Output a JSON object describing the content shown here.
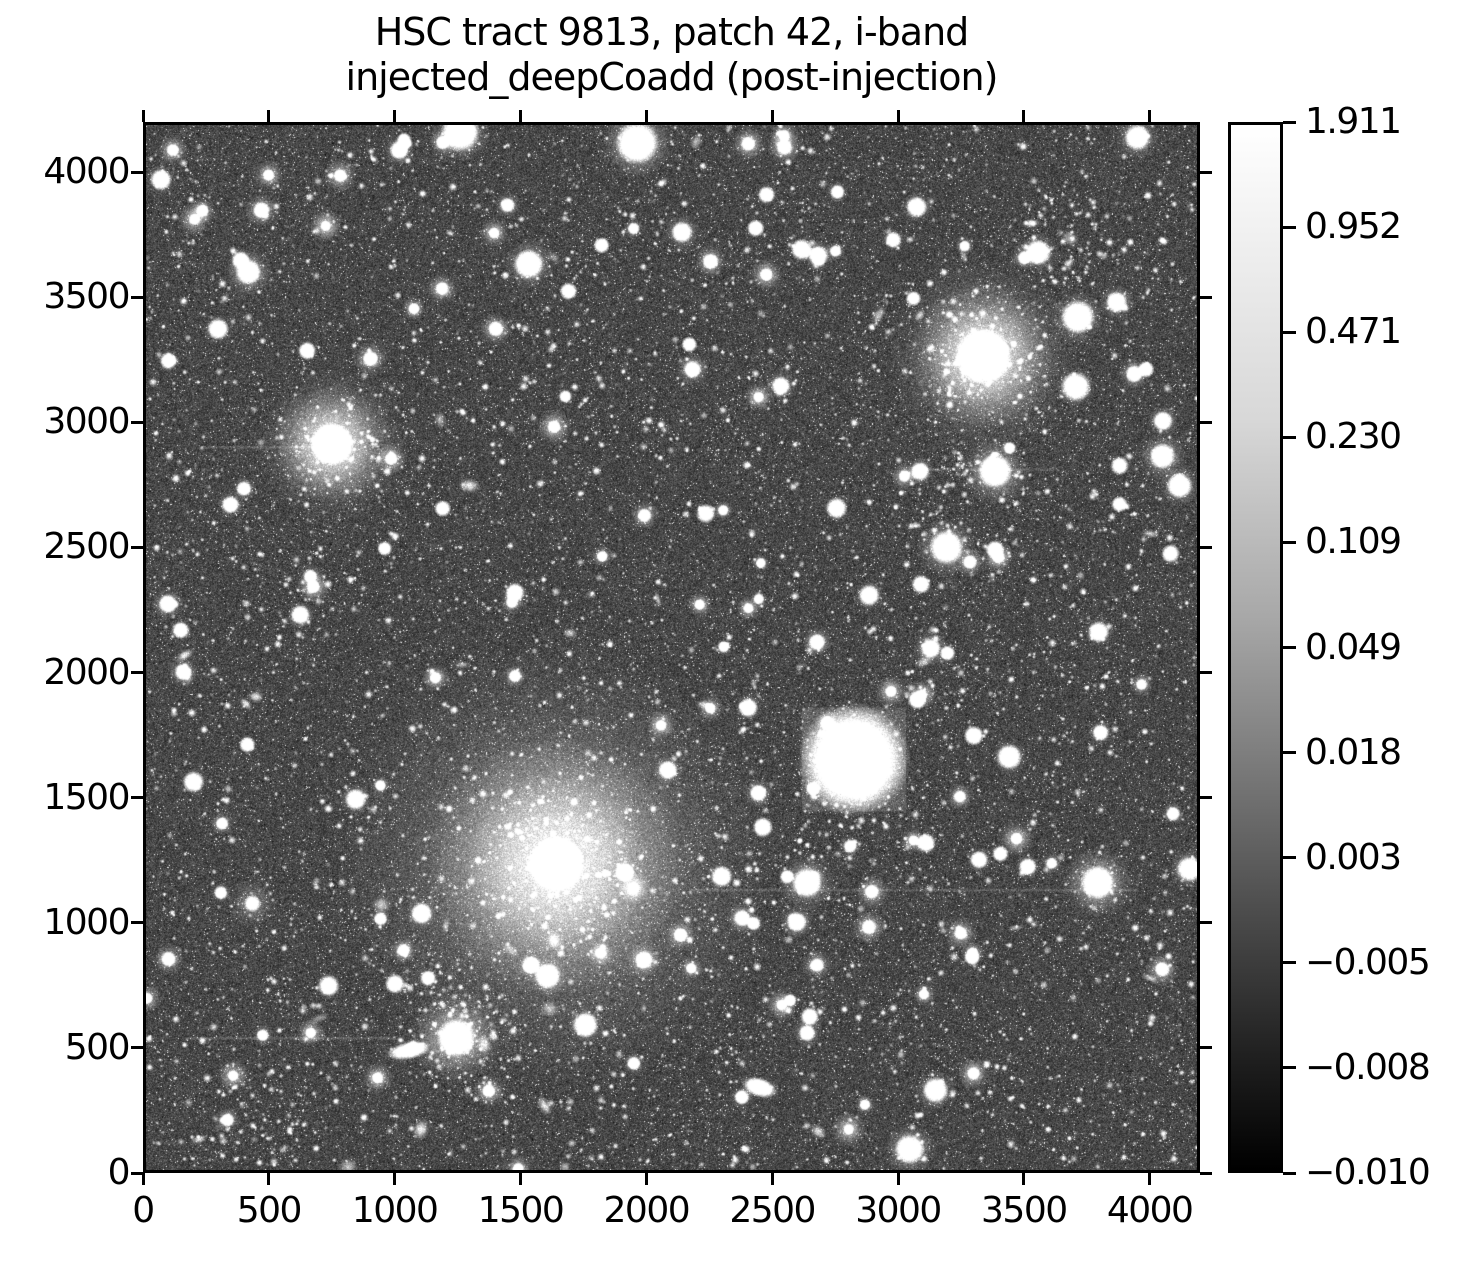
{
  "figure": {
    "title_line1": "HSC tract 9813, patch 42, i-band",
    "title_line2": "injected_deepCoadd (post-injection)",
    "background_color": "#ffffff",
    "text_color": "#000000"
  },
  "chart_data": {
    "type": "heatmap",
    "title": "HSC tract 9813, patch 42, i-band\ninjected_deepCoadd (post-injection)",
    "xlabel": "",
    "ylabel": "",
    "xlim": [
      0,
      4200
    ],
    "ylim": [
      0,
      4200
    ],
    "x_ticks": [
      0,
      500,
      1000,
      1500,
      2000,
      2500,
      3000,
      3500,
      4000
    ],
    "y_ticks": [
      0,
      500,
      1000,
      1500,
      2000,
      2500,
      3000,
      3500,
      4000
    ],
    "grid": false,
    "legend": false,
    "colormap": "grayscale (black=low, white=high)",
    "stretch": "asinh-like nonlinear (tick values unevenly valued, evenly spaced on bar)",
    "colorbar": {
      "position": "right",
      "value_min": -0.01,
      "value_max": 1.911,
      "tick_labels": [
        "1.911",
        "0.952",
        "0.471",
        "0.230",
        "0.109",
        "0.049",
        "0.018",
        "0.003",
        "−0.005",
        "−0.008",
        "−0.010"
      ],
      "tick_values": [
        1.911,
        0.952,
        0.471,
        0.23,
        0.109,
        0.049,
        0.018,
        0.003,
        -0.005,
        -0.008,
        -0.01
      ],
      "gradient_stops": [
        {
          "pos": 0.0,
          "color": "#ffffff"
        },
        {
          "pos": 0.28,
          "color": "#d8d8d8"
        },
        {
          "pos": 0.47,
          "color": "#a8a8a8"
        },
        {
          "pos": 0.62,
          "color": "#787878"
        },
        {
          "pos": 0.76,
          "color": "#4a4a4a"
        },
        {
          "pos": 0.9,
          "color": "#1d1d1d"
        },
        {
          "pos": 1.0,
          "color": "#000000"
        }
      ]
    },
    "image_content": "deep grayscale sky coadd: dense noisy background with thousands of point sources, several saturated stars and diffuse galaxy halos",
    "bright_sources": [
      {
        "x": 1640,
        "y": 1230,
        "core": 13,
        "halo": 130,
        "alpha": 0.95,
        "glow": 1.7,
        "note": "giant central galaxy with huge diffuse halo"
      },
      {
        "x": 3346,
        "y": 3270,
        "core": 13,
        "halo": 75,
        "alpha": 0.9,
        "glow": 1.3
      },
      {
        "x": 743,
        "y": 2917,
        "core": 10,
        "halo": 60,
        "alpha": 0.85,
        "glow": 1.3
      },
      {
        "x": 2829,
        "y": 1650,
        "core": 26,
        "halo": 48,
        "alpha": 0.9,
        "stamp": 52,
        "note": "injected fuzzy source with square stamp edge"
      },
      {
        "x": 3393,
        "y": 2809,
        "core": 8,
        "halo": 34,
        "alpha": 0.85
      },
      {
        "x": 3199,
        "y": 2502,
        "core": 8,
        "halo": 30,
        "alpha": 0.85
      },
      {
        "x": 1963,
        "y": 4128,
        "core": 10,
        "halo": 36,
        "alpha": 0.9
      },
      {
        "x": 1256,
        "y": 4170,
        "core": 9,
        "halo": 30,
        "alpha": 0.9
      },
      {
        "x": 1240,
        "y": 531,
        "core": 9,
        "halo": 46,
        "alpha": 0.9
      },
      {
        "x": 3803,
        "y": 1155,
        "core": 8,
        "halo": 36,
        "alpha": 0.85
      },
      {
        "x": 2642,
        "y": 1155,
        "core": 7,
        "halo": 28,
        "alpha": 0.8
      },
      {
        "x": 3052,
        "y": 84,
        "core": 7,
        "halo": 26,
        "alpha": 0.8
      },
      {
        "x": 1530,
        "y": 3641,
        "core": 7,
        "halo": 25,
        "alpha": 0.8
      },
      {
        "x": 409,
        "y": 3609,
        "core": 6,
        "halo": 24,
        "alpha": 0.8
      },
      {
        "x": 3724,
        "y": 3428,
        "core": 8,
        "halo": 26,
        "alpha": 0.85
      },
      {
        "x": 3716,
        "y": 3148,
        "core": 7,
        "halo": 20,
        "alpha": 0.8
      },
      {
        "x": 3962,
        "y": 4150,
        "core": 6,
        "halo": 22,
        "alpha": 0.8
      },
      {
        "x": 2142,
        "y": 3769,
        "core": 5,
        "halo": 18,
        "alpha": 0.75
      },
      {
        "x": 4062,
        "y": 2869,
        "core": 6,
        "halo": 24,
        "alpha": 0.8
      },
      {
        "x": 3565,
        "y": 3688,
        "core": 6,
        "halo": 20,
        "alpha": 0.8
      },
      {
        "x": 3879,
        "y": 3488,
        "core": 5,
        "halo": 18,
        "alpha": 0.75
      },
      {
        "x": 1605,
        "y": 779,
        "core": 6,
        "halo": 20,
        "alpha": 0.8
      },
      {
        "x": 1756,
        "y": 583,
        "core": 6,
        "halo": 18,
        "alpha": 0.8
      },
      {
        "x": 1101,
        "y": 1031,
        "core": 5,
        "halo": 16,
        "alpha": 0.75
      },
      {
        "x": 838,
        "y": 1490,
        "core": 5,
        "halo": 16,
        "alpha": 0.75
      },
      {
        "x": 3155,
        "y": 320,
        "core": 6,
        "halo": 20,
        "alpha": 0.8
      },
      {
        "x": 2452,
        "y": 332,
        "core": 8,
        "halo": 22,
        "alpha": 0.7,
        "ell": 0.55,
        "rot": 0.3,
        "note": "elongated bright galaxy"
      },
      {
        "x": 425,
        "y": 1071,
        "core": 4,
        "halo": 26,
        "alpha": 0.4,
        "note": "faint diffuse galaxy"
      },
      {
        "x": 3807,
        "y": 2162,
        "core": 5,
        "halo": 15,
        "alpha": 0.7
      },
      {
        "x": 139,
        "y": 2170,
        "core": 4,
        "halo": 12,
        "alpha": 0.7
      },
      {
        "x": 4130,
        "y": 2750,
        "core": 6,
        "halo": 20,
        "alpha": 0.8
      },
      {
        "x": 288,
        "y": 3380,
        "core": 5,
        "halo": 16,
        "alpha": 0.7
      },
      {
        "x": 60,
        "y": 3980,
        "core": 5,
        "halo": 16,
        "alpha": 0.7
      },
      {
        "x": 1050,
        "y": 480,
        "core": 10,
        "halo": 34,
        "alpha": 0.35,
        "ell": 0.4,
        "rot": -0.2,
        "note": "diffuse elongated glow"
      },
      {
        "x": 4170,
        "y": 1210,
        "core": 6,
        "halo": 20,
        "alpha": 0.8
      },
      {
        "x": 2890,
        "y": 2310,
        "core": 5,
        "halo": 15,
        "alpha": 0.7
      },
      {
        "x": 2760,
        "y": 2660,
        "core": 5,
        "halo": 14,
        "alpha": 0.7
      },
      {
        "x": 2300,
        "y": 1180,
        "core": 5,
        "halo": 14,
        "alpha": 0.7
      },
      {
        "x": 3450,
        "y": 1660,
        "core": 6,
        "halo": 18,
        "alpha": 0.75
      },
      {
        "x": 730,
        "y": 740,
        "core": 5,
        "halo": 14,
        "alpha": 0.7
      },
      {
        "x": 190,
        "y": 1560,
        "core": 5,
        "halo": 14,
        "alpha": 0.7
      },
      {
        "x": 3080,
        "y": 3870,
        "core": 5,
        "halo": 16,
        "alpha": 0.7
      },
      {
        "x": 2620,
        "y": 3700,
        "core": 5,
        "halo": 14,
        "alpha": 0.7
      },
      {
        "x": 2480,
        "y": 3920,
        "core": 4,
        "halo": 12,
        "alpha": 0.7
      }
    ],
    "star_clusters": [
      {
        "x": 1640,
        "y": 1230,
        "r": 420,
        "n": 130
      },
      {
        "x": 1240,
        "y": 530,
        "r": 330,
        "n": 110
      },
      {
        "x": 3350,
        "y": 3250,
        "r": 300,
        "n": 80
      },
      {
        "x": 3300,
        "y": 2650,
        "r": 380,
        "n": 90
      },
      {
        "x": 750,
        "y": 2900,
        "r": 280,
        "n": 70
      },
      {
        "x": 3650,
        "y": 3750,
        "r": 260,
        "n": 60
      },
      {
        "x": 2830,
        "y": 1400,
        "r": 300,
        "n": 60
      },
      {
        "x": 480,
        "y": 230,
        "r": 300,
        "n": 60
      }
    ],
    "trails": [
      {
        "x1": 160,
        "x2": 1000,
        "y": 530
      },
      {
        "x1": 2170,
        "x2": 3960,
        "y": 1125
      },
      {
        "x1": 3100,
        "x2": 3650,
        "y": 2815
      },
      {
        "x1": 220,
        "x2": 760,
        "y": 2905
      }
    ],
    "field": {
      "seed": 20240917,
      "noise_base": 42,
      "noise_range": 56,
      "faint_stars": 4600,
      "medium_stars": 1050,
      "bright_stars": 150,
      "galaxies": 60
    }
  }
}
